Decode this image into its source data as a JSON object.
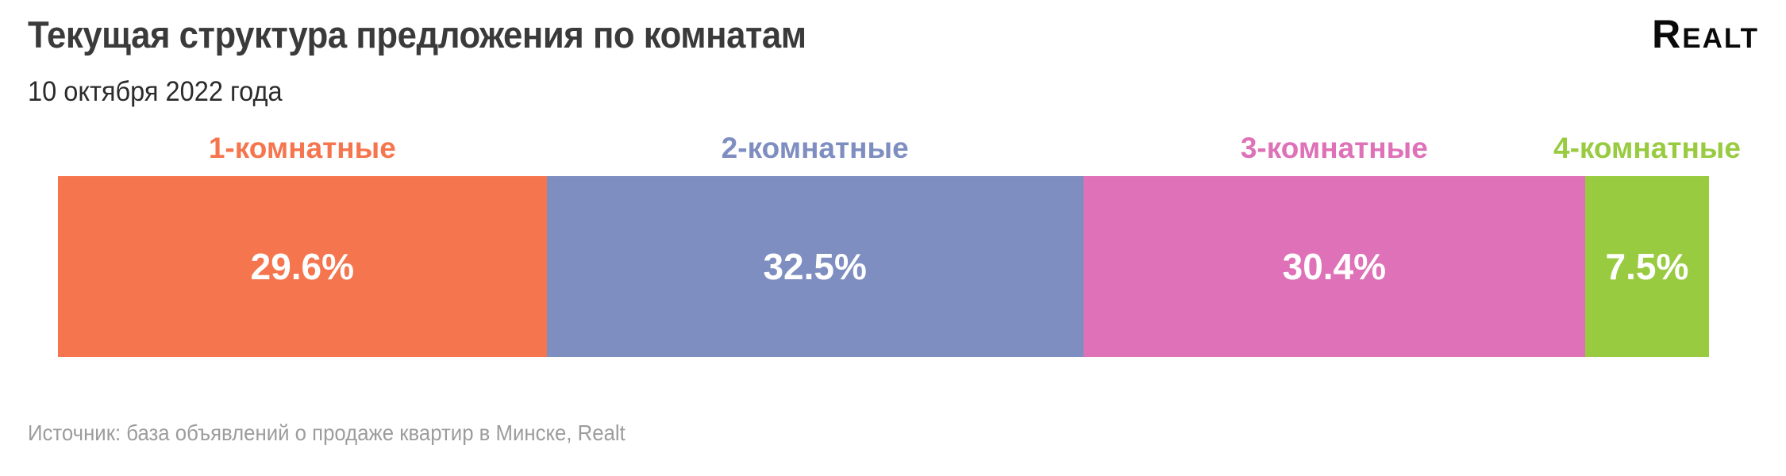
{
  "header": {
    "title": "Текущая структура предложения по комнатам",
    "subtitle": "10 октября 2022 года"
  },
  "logo": {
    "text": "Realt"
  },
  "footer": {
    "source": "Источник: база объявлений о продаже квартир в Минске, Realt"
  },
  "chart_data": {
    "type": "bar",
    "variant": "horizontal-stacked-100-percent",
    "title": "Текущая структура предложения по комнатам",
    "subtitle": "10 октября 2022 года",
    "unit": "%",
    "categories": [
      "1-комнатные",
      "2-комнатные",
      "3-комнатные",
      "4-комнатные"
    ],
    "values": [
      29.6,
      32.5,
      30.4,
      7.5
    ],
    "value_labels": [
      "29.6%",
      "32.5%",
      "30.4%",
      "7.5%"
    ],
    "colors": [
      "#f5764e",
      "#7e8ec0",
      "#de71b7",
      "#99cb41"
    ],
    "value_text_color": "#ffffff",
    "legend_position": "above-segments",
    "grid": false,
    "source": "Источник: база объявлений о продаже квартир в Минске, Realt"
  }
}
